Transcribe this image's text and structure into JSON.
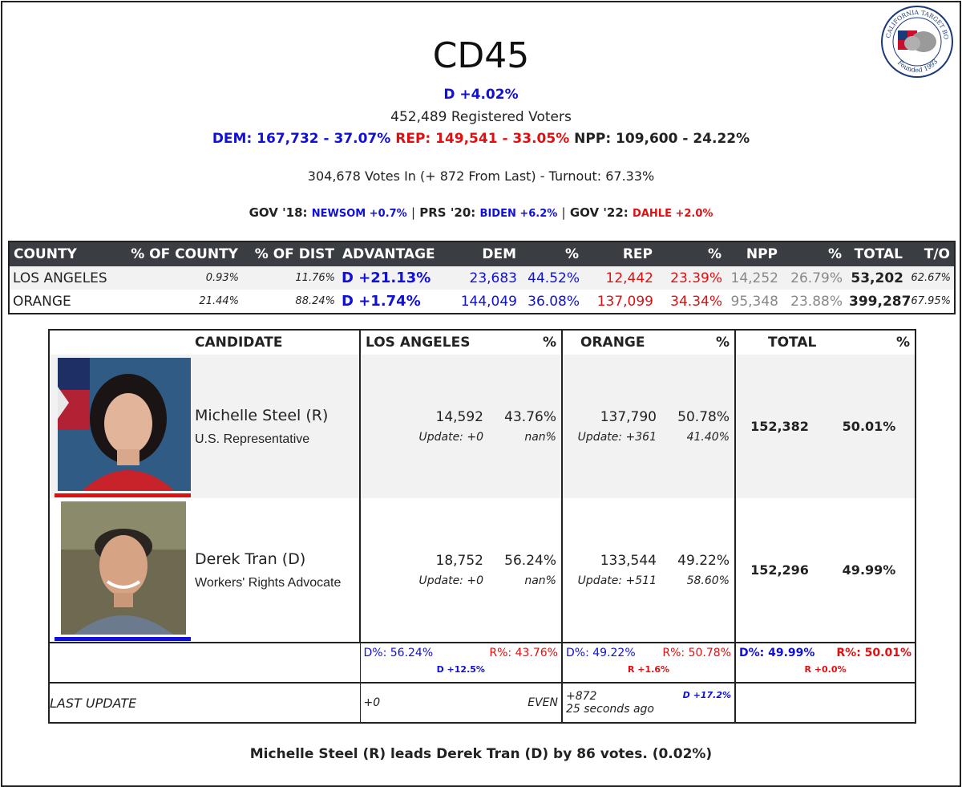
{
  "seal": {
    "text_top": "CALIFORNIA TARGET BOOK",
    "text_bottom": "Founded 1993"
  },
  "header": {
    "title": "CD45",
    "advantage": "D +4.02%",
    "registered": "452,489 Registered Voters",
    "dem": "DEM: 167,732 - 37.07%",
    "rep": "REP: 149,541 - 33.05%",
    "npp": "NPP: 109,600 - 24.22%",
    "votes_in": "304,678 Votes In (+ 872 From Last) - Turnout: 67.33%"
  },
  "history": {
    "gov18_label": "GOV '18:",
    "gov18_value": "NEWSOM +0.7%",
    "prs20_label": "PRS '20:",
    "prs20_value": "BIDEN +6.2%",
    "gov22_label": "GOV '22:",
    "gov22_value": "DAHLE +2.0%",
    "sep": "|"
  },
  "county_table": {
    "headers": [
      "COUNTY",
      "% OF COUNTY",
      "% OF DIST",
      "ADVANTAGE",
      "DEM",
      "%",
      "REP",
      "%",
      "NPP",
      "%",
      "TOTAL",
      "T/O"
    ],
    "rows": [
      [
        "LOS ANGELES",
        "0.93%",
        "11.76%",
        "D +21.13%",
        "23,683",
        "44.52%",
        "12,442",
        "23.39%",
        "14,252",
        "26.79%",
        "53,202",
        "62.67%"
      ],
      [
        "ORANGE",
        "21.44%",
        "88.24%",
        "D +1.74%",
        "144,049",
        "36.08%",
        "137,099",
        "34.34%",
        "95,348",
        "23.88%",
        "399,287",
        "67.95%"
      ]
    ]
  },
  "candidate_table": {
    "headers": [
      "CANDIDATE",
      "LOS ANGELES",
      "%",
      "ORANGE",
      "%",
      "TOTAL",
      "%"
    ],
    "candidates": [
      {
        "name": "Michelle Steel (R)",
        "title": "U.S. Representative",
        "party_color": "#e01010",
        "la_votes": "14,592",
        "la_pct": "43.76%",
        "la_update": "Update: +0",
        "la_update_pct": "nan%",
        "oc_votes": "137,790",
        "oc_pct": "50.78%",
        "oc_update": "Update: +361",
        "oc_update_pct": "41.40%",
        "total": "152,382",
        "total_pct": "50.01%"
      },
      {
        "name": "Derek Tran (D)",
        "title": "Workers' Rights Advocate",
        "party_color": "#1010d8",
        "la_votes": "18,752",
        "la_pct": "56.24%",
        "la_update": "Update: +0",
        "la_update_pct": "nan%",
        "oc_votes": "133,544",
        "oc_pct": "49.22%",
        "oc_update": "Update: +511",
        "oc_update_pct": "58.60%",
        "total": "152,296",
        "total_pct": "49.99%"
      }
    ],
    "summary": {
      "la_d": "D%: 56.24%",
      "la_r": "R%: 43.76%",
      "la_margin": "D +12.5%",
      "oc_d": "D%: 49.22%",
      "oc_r": "R%: 50.78%",
      "oc_margin": "R +1.6%",
      "tot_d": "D%: 49.99%",
      "tot_r": "R%: 50.01%",
      "tot_margin": "R +0.0%"
    },
    "last_update": {
      "label": "LAST UPDATE",
      "la_change": "+0",
      "la_lean": "EVEN",
      "oc_change": "+872",
      "oc_lean": "D +17.2%",
      "oc_time": "25 seconds ago"
    }
  },
  "footer": "Michelle Steel (R) leads Derek Tran (D) by 86 votes. (0.02%)"
}
